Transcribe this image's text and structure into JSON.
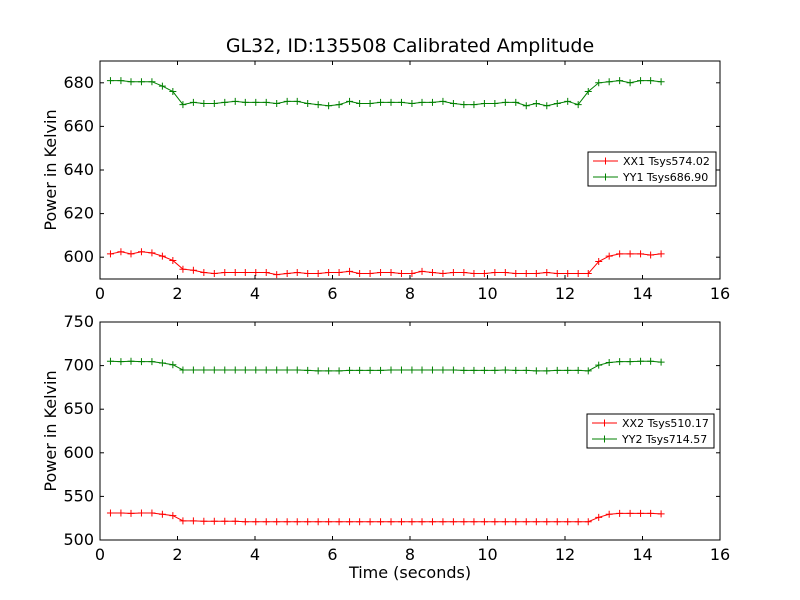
{
  "figure": {
    "title": "GL32, ID:135508 Calibrated Amplitude"
  },
  "chart_data": [
    {
      "type": "line",
      "title": "GL32, ID:135508 Calibrated Amplitude",
      "xlabel": "",
      "ylabel": "Power in Kelvin",
      "xlim": [
        0,
        16
      ],
      "ylim": [
        590,
        690
      ],
      "xticks": [
        0,
        2,
        4,
        6,
        8,
        10,
        12,
        14,
        16
      ],
      "yticks": [
        600,
        620,
        640,
        660,
        680
      ],
      "grid": false,
      "legend_position": "right",
      "x": [
        0.27,
        0.54,
        0.8,
        1.07,
        1.34,
        1.61,
        1.88,
        2.14,
        2.41,
        2.68,
        2.95,
        3.22,
        3.49,
        3.75,
        4.02,
        4.29,
        4.56,
        4.83,
        5.09,
        5.36,
        5.63,
        5.9,
        6.17,
        6.44,
        6.7,
        6.97,
        7.24,
        7.51,
        7.78,
        8.05,
        8.31,
        8.58,
        8.85,
        9.12,
        9.39,
        9.65,
        9.92,
        10.19,
        10.46,
        10.73,
        11.0,
        11.26,
        11.53,
        11.8,
        12.07,
        12.34,
        12.6,
        12.87,
        13.14,
        13.41,
        13.68,
        13.95,
        14.21,
        14.48
      ],
      "series": [
        {
          "name": "XX1 Tsys574.02",
          "color": "#ff0000",
          "values": [
            601.5,
            602.5,
            601.5,
            602.5,
            602,
            600.5,
            598.5,
            594.5,
            594,
            593,
            592.5,
            593,
            593,
            593,
            593,
            593,
            592,
            592.5,
            593,
            592.5,
            592.5,
            593,
            593,
            593.5,
            592.5,
            592.5,
            593,
            593,
            592.5,
            592.5,
            593.5,
            593,
            592.5,
            593,
            593,
            592.5,
            592.5,
            593,
            593,
            592.5,
            592.5,
            592.5,
            593,
            592.5,
            592.5,
            592.5,
            592.5,
            598,
            600.5,
            601.5,
            601.5,
            601.5,
            601,
            601.5
          ]
        },
        {
          "name": "YY1 Tsys686.90",
          "color": "#008000",
          "values": [
            681,
            681,
            680.5,
            680.5,
            680.5,
            678.5,
            676,
            670,
            671,
            670.5,
            670.5,
            671,
            671.5,
            671,
            671,
            671,
            670.5,
            671.5,
            671.5,
            670.5,
            670,
            669.5,
            670,
            671.5,
            670.5,
            670.5,
            671,
            671,
            671,
            670.5,
            671,
            671,
            671.5,
            670.5,
            670,
            670,
            670.5,
            670.5,
            671,
            671,
            669.5,
            670.5,
            669.5,
            670.5,
            671.5,
            670,
            676,
            680,
            680.5,
            681,
            680,
            681,
            681,
            680.5
          ]
        }
      ]
    },
    {
      "type": "line",
      "title": "",
      "xlabel": "Time (seconds)",
      "ylabel": "Power in Kelvin",
      "xlim": [
        0,
        16
      ],
      "ylim": [
        500,
        750
      ],
      "xticks": [
        0,
        2,
        4,
        6,
        8,
        10,
        12,
        14,
        16
      ],
      "yticks": [
        500,
        550,
        600,
        650,
        700,
        750
      ],
      "grid": false,
      "legend_position": "right",
      "x": [
        0.27,
        0.54,
        0.8,
        1.07,
        1.34,
        1.61,
        1.88,
        2.14,
        2.41,
        2.68,
        2.95,
        3.22,
        3.49,
        3.75,
        4.02,
        4.29,
        4.56,
        4.83,
        5.09,
        5.36,
        5.63,
        5.9,
        6.17,
        6.44,
        6.7,
        6.97,
        7.24,
        7.51,
        7.78,
        8.05,
        8.31,
        8.58,
        8.85,
        9.12,
        9.39,
        9.65,
        9.92,
        10.19,
        10.46,
        10.73,
        11.0,
        11.26,
        11.53,
        11.8,
        12.07,
        12.34,
        12.6,
        12.87,
        13.14,
        13.41,
        13.68,
        13.95,
        14.21,
        14.48
      ],
      "series": [
        {
          "name": "XX2 Tsys510.17",
          "color": "#ff0000",
          "values": [
            531,
            531,
            530.5,
            531,
            531,
            529.5,
            528,
            522,
            522,
            521.5,
            521.5,
            521.5,
            521.5,
            521,
            521,
            521,
            521,
            521,
            521,
            521,
            521,
            521,
            521,
            521,
            521,
            521,
            521,
            521,
            521,
            521,
            521,
            521,
            521,
            521,
            521,
            521,
            521,
            521,
            521,
            521,
            521,
            521,
            521,
            521,
            521,
            521,
            521,
            526,
            529.5,
            530.5,
            530.5,
            530.5,
            530.5,
            530
          ]
        },
        {
          "name": "YY2 Tsys714.57",
          "color": "#008000",
          "values": [
            705,
            704.5,
            705,
            704.5,
            704.5,
            703,
            701,
            695,
            695,
            695,
            695,
            695,
            695,
            695,
            695,
            695,
            695,
            695,
            695,
            694.5,
            694,
            694,
            694,
            694.5,
            694.5,
            694.5,
            694.5,
            695,
            695,
            695,
            695,
            695,
            695,
            695,
            694.5,
            694.5,
            694.5,
            694.5,
            695,
            694.5,
            694.5,
            694,
            694,
            694.5,
            694.5,
            694.5,
            694,
            700.5,
            703.5,
            704.5,
            704.5,
            705,
            705,
            704
          ]
        }
      ]
    }
  ]
}
